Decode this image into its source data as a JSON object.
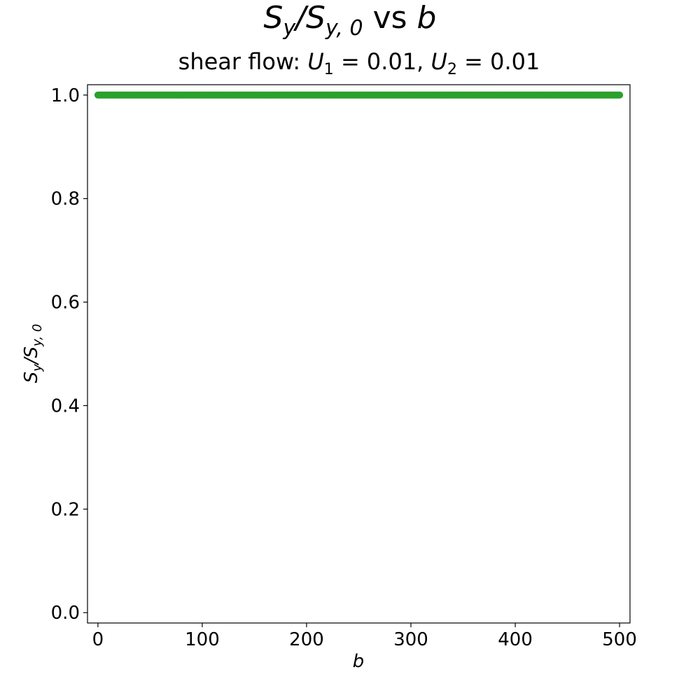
{
  "chart_data": {
    "type": "scatter",
    "title": {
      "main": "S",
      "main_sub": "y",
      "slash": "/S",
      "denom_sub": "y, 0",
      "vs": " vs ",
      "var": "b"
    },
    "subtitle": {
      "prefix": "shear flow: ",
      "u1": "U",
      "u1_sub": "1",
      "u1_val": " = 0.01, ",
      "u2": "U",
      "u2_sub": "2",
      "u2_val": " = 0.01"
    },
    "xlabel": "b",
    "ylabel": {
      "s": "S",
      "s_sub": "y",
      "slash": "/S",
      "denom_sub": "y, 0"
    },
    "xlim": [
      -10,
      510
    ],
    "ylim": [
      -0.02,
      1.02
    ],
    "xticks": [
      0,
      100,
      200,
      300,
      400,
      500
    ],
    "xtick_labels": [
      "0",
      "100",
      "200",
      "300",
      "400",
      "500"
    ],
    "yticks": [
      0.0,
      0.2,
      0.4,
      0.6,
      0.8,
      1.0
    ],
    "ytick_labels": [
      "0.0",
      "0.2",
      "0.4",
      "0.6",
      "0.8",
      "1.0"
    ],
    "grid": false,
    "series": [
      {
        "x_start": 0,
        "x_end": 500,
        "x_step": 1,
        "y": 1.0,
        "color": "#2ca02c"
      }
    ]
  }
}
